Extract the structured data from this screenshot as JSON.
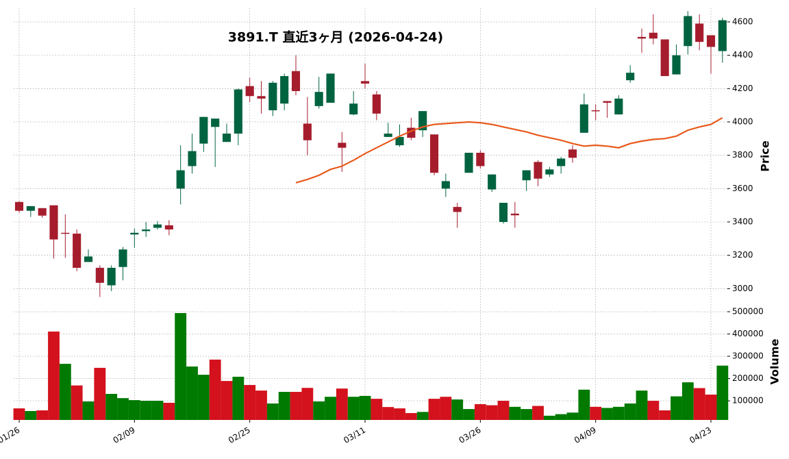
{
  "chart_data": {
    "type": "candlestick",
    "title": "3891.T 直近3ヶ月 (2026-04-24)",
    "categories": [
      "01/26",
      null,
      null,
      null,
      null,
      null,
      null,
      null,
      null,
      null,
      "02/09",
      null,
      null,
      null,
      null,
      null,
      null,
      null,
      null,
      null,
      "02/25",
      null,
      null,
      null,
      null,
      null,
      null,
      null,
      null,
      null,
      "03/11",
      null,
      null,
      null,
      null,
      null,
      null,
      null,
      null,
      null,
      "03/26",
      null,
      null,
      null,
      null,
      null,
      null,
      null,
      null,
      null,
      "04/09",
      null,
      null,
      null,
      null,
      null,
      null,
      null,
      null,
      null,
      "04/23",
      null
    ],
    "open": [
      3520,
      3467,
      3483,
      3500,
      3335,
      3330,
      3160,
      3125,
      3020,
      3130,
      3325,
      3345,
      3365,
      3380,
      3600,
      3735,
      3870,
      3970,
      3880,
      3930,
      4215,
      4155,
      4070,
      4110,
      4305,
      3990,
      4095,
      4115,
      3875,
      4045,
      4245,
      4165,
      3910,
      3860,
      3965,
      3950,
      3925,
      3600,
      3490,
      3695,
      3815,
      3595,
      3400,
      3450,
      3650,
      3760,
      3685,
      3735,
      3835,
      3935,
      4070,
      4125,
      4045,
      4250,
      4510,
      4535,
      4495,
      4285,
      4455,
      4590,
      4520,
      4425
    ],
    "high": [
      3525,
      3495,
      3483,
      3500,
      3445,
      3355,
      3235,
      3140,
      3140,
      3250,
      3360,
      3400,
      3405,
      3410,
      3860,
      3930,
      4030,
      4020,
      3990,
      4200,
      4265,
      4245,
      4245,
      4290,
      4400,
      4150,
      4270,
      4290,
      3940,
      4185,
      4350,
      4185,
      3995,
      3985,
      4025,
      4065,
      3925,
      3690,
      3515,
      3815,
      3830,
      3685,
      3515,
      3520,
      3710,
      3770,
      3730,
      3790,
      3860,
      4170,
      4105,
      4125,
      4160,
      4340,
      4560,
      4645,
      4495,
      4465,
      4665,
      4645,
      4520,
      4625
    ],
    "low": [
      3455,
      3430,
      3425,
      3180,
      3185,
      3105,
      3160,
      2950,
      2985,
      3050,
      3245,
      3310,
      3355,
      3320,
      3505,
      3690,
      3820,
      3730,
      3880,
      3860,
      4120,
      4050,
      4035,
      4070,
      4160,
      3800,
      4080,
      4115,
      3700,
      4040,
      4200,
      4010,
      3910,
      3850,
      3890,
      3910,
      3680,
      3550,
      3365,
      3695,
      3720,
      3580,
      3390,
      3365,
      3585,
      3615,
      3670,
      3690,
      3755,
      3935,
      4010,
      4025,
      4045,
      4235,
      4415,
      4465,
      4275,
      4285,
      4405,
      4430,
      4290,
      4355
    ],
    "close": [
      3467,
      3495,
      3438,
      3295,
      3330,
      3125,
      3193,
      3035,
      3125,
      3235,
      3335,
      3355,
      3385,
      3355,
      3710,
      3825,
      4030,
      4020,
      3930,
      4195,
      4155,
      4140,
      4235,
      4275,
      4185,
      3890,
      4180,
      4290,
      3845,
      4110,
      4230,
      4050,
      3930,
      3910,
      3905,
      4065,
      3695,
      3645,
      3460,
      3815,
      3735,
      3685,
      3515,
      3440,
      3710,
      3660,
      3715,
      3780,
      3785,
      4105,
      4065,
      4115,
      4140,
      4295,
      4500,
      4500,
      4275,
      4400,
      4635,
      4480,
      4450,
      4610
    ],
    "up_color": "#006340",
    "down_color": "#a51d2d",
    "moving_average": {
      "color": "#e8591a",
      "values": [
        null,
        null,
        null,
        null,
        null,
        null,
        null,
        null,
        null,
        null,
        null,
        null,
        null,
        null,
        null,
        null,
        null,
        null,
        null,
        null,
        null,
        null,
        null,
        null,
        3635,
        3655,
        3680,
        3715,
        3735,
        3770,
        3810,
        3845,
        3880,
        3915,
        3945,
        3970,
        3985,
        3990,
        3995,
        4000,
        3995,
        3985,
        3970,
        3955,
        3940,
        3920,
        3905,
        3890,
        3870,
        3855,
        3860,
        3855,
        3845,
        3870,
        3885,
        3895,
        3900,
        3915,
        3950,
        3970,
        3985,
        4025
      ]
    },
    "ylim": [
      2911,
      4682
    ],
    "yticks": [
      3000,
      3200,
      3400,
      3600,
      3800,
      4000,
      4200,
      4400,
      4600
    ],
    "ylabel": "Price",
    "grid": true,
    "volume": {
      "values": [
        66000,
        54000,
        57000,
        411000,
        266000,
        169000,
        97000,
        248000,
        131000,
        112000,
        103000,
        100000,
        100000,
        91000,
        494000,
        254000,
        217000,
        285000,
        189000,
        208000,
        171000,
        146000,
        88000,
        140000,
        140000,
        158000,
        97000,
        118000,
        155000,
        118000,
        122000,
        109000,
        72000,
        66000,
        45000,
        50000,
        109000,
        118000,
        106000,
        63000,
        85000,
        80000,
        100000,
        73000,
        63000,
        77000,
        33000,
        40000,
        47000,
        150000,
        73000,
        68000,
        73000,
        88000,
        146000,
        100000,
        57000,
        120000,
        183000,
        157000,
        128000,
        258000
      ],
      "colors": [
        "#d3121d",
        "#007a00",
        "#d3121d",
        "#d3121d",
        "#007a00",
        "#d3121d",
        "#007a00",
        "#d3121d",
        "#007a00",
        "#007a00",
        "#007a00",
        "#007a00",
        "#007a00",
        "#d3121d",
        "#007a00",
        "#007a00",
        "#007a00",
        "#d3121d",
        "#d3121d",
        "#007a00",
        "#d3121d",
        "#d3121d",
        "#007a00",
        "#007a00",
        "#d3121d",
        "#d3121d",
        "#007a00",
        "#007a00",
        "#d3121d",
        "#007a00",
        "#007a00",
        "#d3121d",
        "#d3121d",
        "#d3121d",
        "#d3121d",
        "#007a00",
        "#d3121d",
        "#d3121d",
        "#007a00",
        "#007a00",
        "#d3121d",
        "#d3121d",
        "#d3121d",
        "#007a00",
        "#007a00",
        "#d3121d",
        "#007a00",
        "#007a00",
        "#007a00",
        "#007a00",
        "#d3121d",
        "#007a00",
        "#007a00",
        "#007a00",
        "#007a00",
        "#d3121d",
        "#d3121d",
        "#007a00",
        "#007a00",
        "#d3121d",
        "#d3121d",
        "#007a00"
      ],
      "ylim": [
        14000,
        537000
      ],
      "yticks": [
        100000,
        200000,
        300000,
        400000,
        500000
      ],
      "ylabel": "Volume"
    }
  }
}
